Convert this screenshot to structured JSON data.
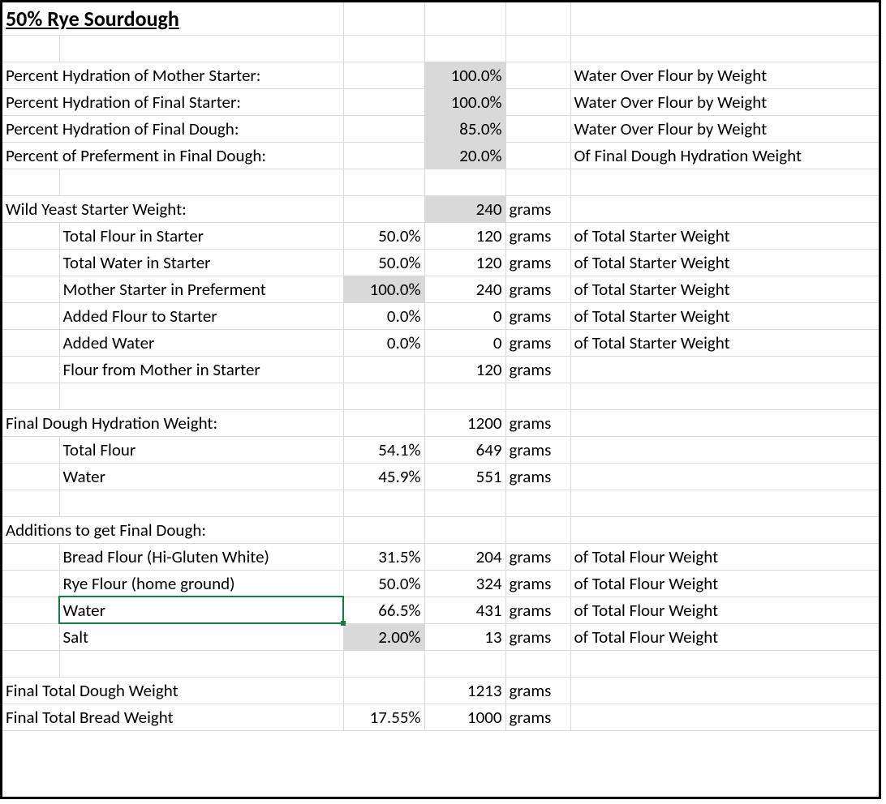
{
  "title": "50% Rye Sourdough",
  "rows": [
    {
      "a": "Percent Hydration of Mother Starter:",
      "c": "",
      "d": "100.0%",
      "dshade": true,
      "e": "",
      "f": "Water Over Flour by Weight"
    },
    {
      "a": "Percent Hydration of Final Starter:",
      "c": "",
      "d": "100.0%",
      "dshade": true,
      "e": "",
      "f": "Water Over Flour by Weight"
    },
    {
      "a": "Percent Hydration of Final Dough:",
      "c": "",
      "d": "85.0%",
      "dshade": true,
      "e": "",
      "f": "Water Over Flour by Weight"
    },
    {
      "a": "Percent of Preferment in Final Dough:",
      "c": "",
      "d": "20.0%",
      "dshade": true,
      "e": "",
      "f": "Of Final Dough Hydration Weight"
    },
    {
      "blank": true
    },
    {
      "a": "Wild Yeast Starter Weight:",
      "c": "",
      "d": "240",
      "dshade": true,
      "e": "grams",
      "f": ""
    },
    {
      "b": "Total Flour in Starter",
      "c": "50.0%",
      "d": "120",
      "e": "grams",
      "f": "of Total Starter Weight"
    },
    {
      "b": "Total Water in Starter",
      "c": "50.0%",
      "d": "120",
      "e": "grams",
      "f": "of Total Starter Weight"
    },
    {
      "b": "Mother Starter in Preferment",
      "c": "100.0%",
      "cshade": true,
      "d": "240",
      "e": "grams",
      "f": "of Total Starter Weight"
    },
    {
      "b": "Added Flour to Starter",
      "c": "0.0%",
      "d": "0",
      "e": "grams",
      "f": "of Total Starter Weight"
    },
    {
      "b": "Added Water",
      "c": "0.0%",
      "d": "0",
      "e": "grams",
      "f": "of Total Starter Weight"
    },
    {
      "b": "Flour from Mother in Starter",
      "c": "",
      "d": "120",
      "e": "grams",
      "f": ""
    },
    {
      "blank": true
    },
    {
      "a": "Final Dough Hydration Weight:",
      "c": "",
      "d": "1200",
      "e": "grams",
      "f": ""
    },
    {
      "b": "Total Flour",
      "c": "54.1%",
      "d": "649",
      "e": "grams",
      "f": ""
    },
    {
      "b": "Water",
      "c": "45.9%",
      "d": "551",
      "e": "grams",
      "f": ""
    },
    {
      "blank": true
    },
    {
      "a": "Additions to get Final Dough:",
      "c": "",
      "d": "",
      "e": "",
      "f": ""
    },
    {
      "b": "Bread Flour (Hi-Gluten White)",
      "c": "31.5%",
      "d": "204",
      "e": "grams",
      "f": "of Total Flour Weight"
    },
    {
      "b": "Rye Flour (home ground)",
      "c": "50.0%",
      "d": "324",
      "e": "grams",
      "f": "of Total Flour Weight"
    },
    {
      "b": "Water",
      "bselected": true,
      "c": "66.5%",
      "d": "431",
      "e": "grams",
      "f": "of Total Flour Weight"
    },
    {
      "b": "Salt",
      "c": "2.00%",
      "cshade": true,
      "d": "13",
      "e": "grams",
      "f": "of Total Flour Weight"
    },
    {
      "blank": true
    },
    {
      "a": "Final Total Dough Weight",
      "c": "",
      "d": "1213",
      "e": "grams",
      "f": ""
    },
    {
      "a": "Final Total Bread Weight",
      "c": "17.55%",
      "d": "1000",
      "e": "grams",
      "f": ""
    }
  ]
}
